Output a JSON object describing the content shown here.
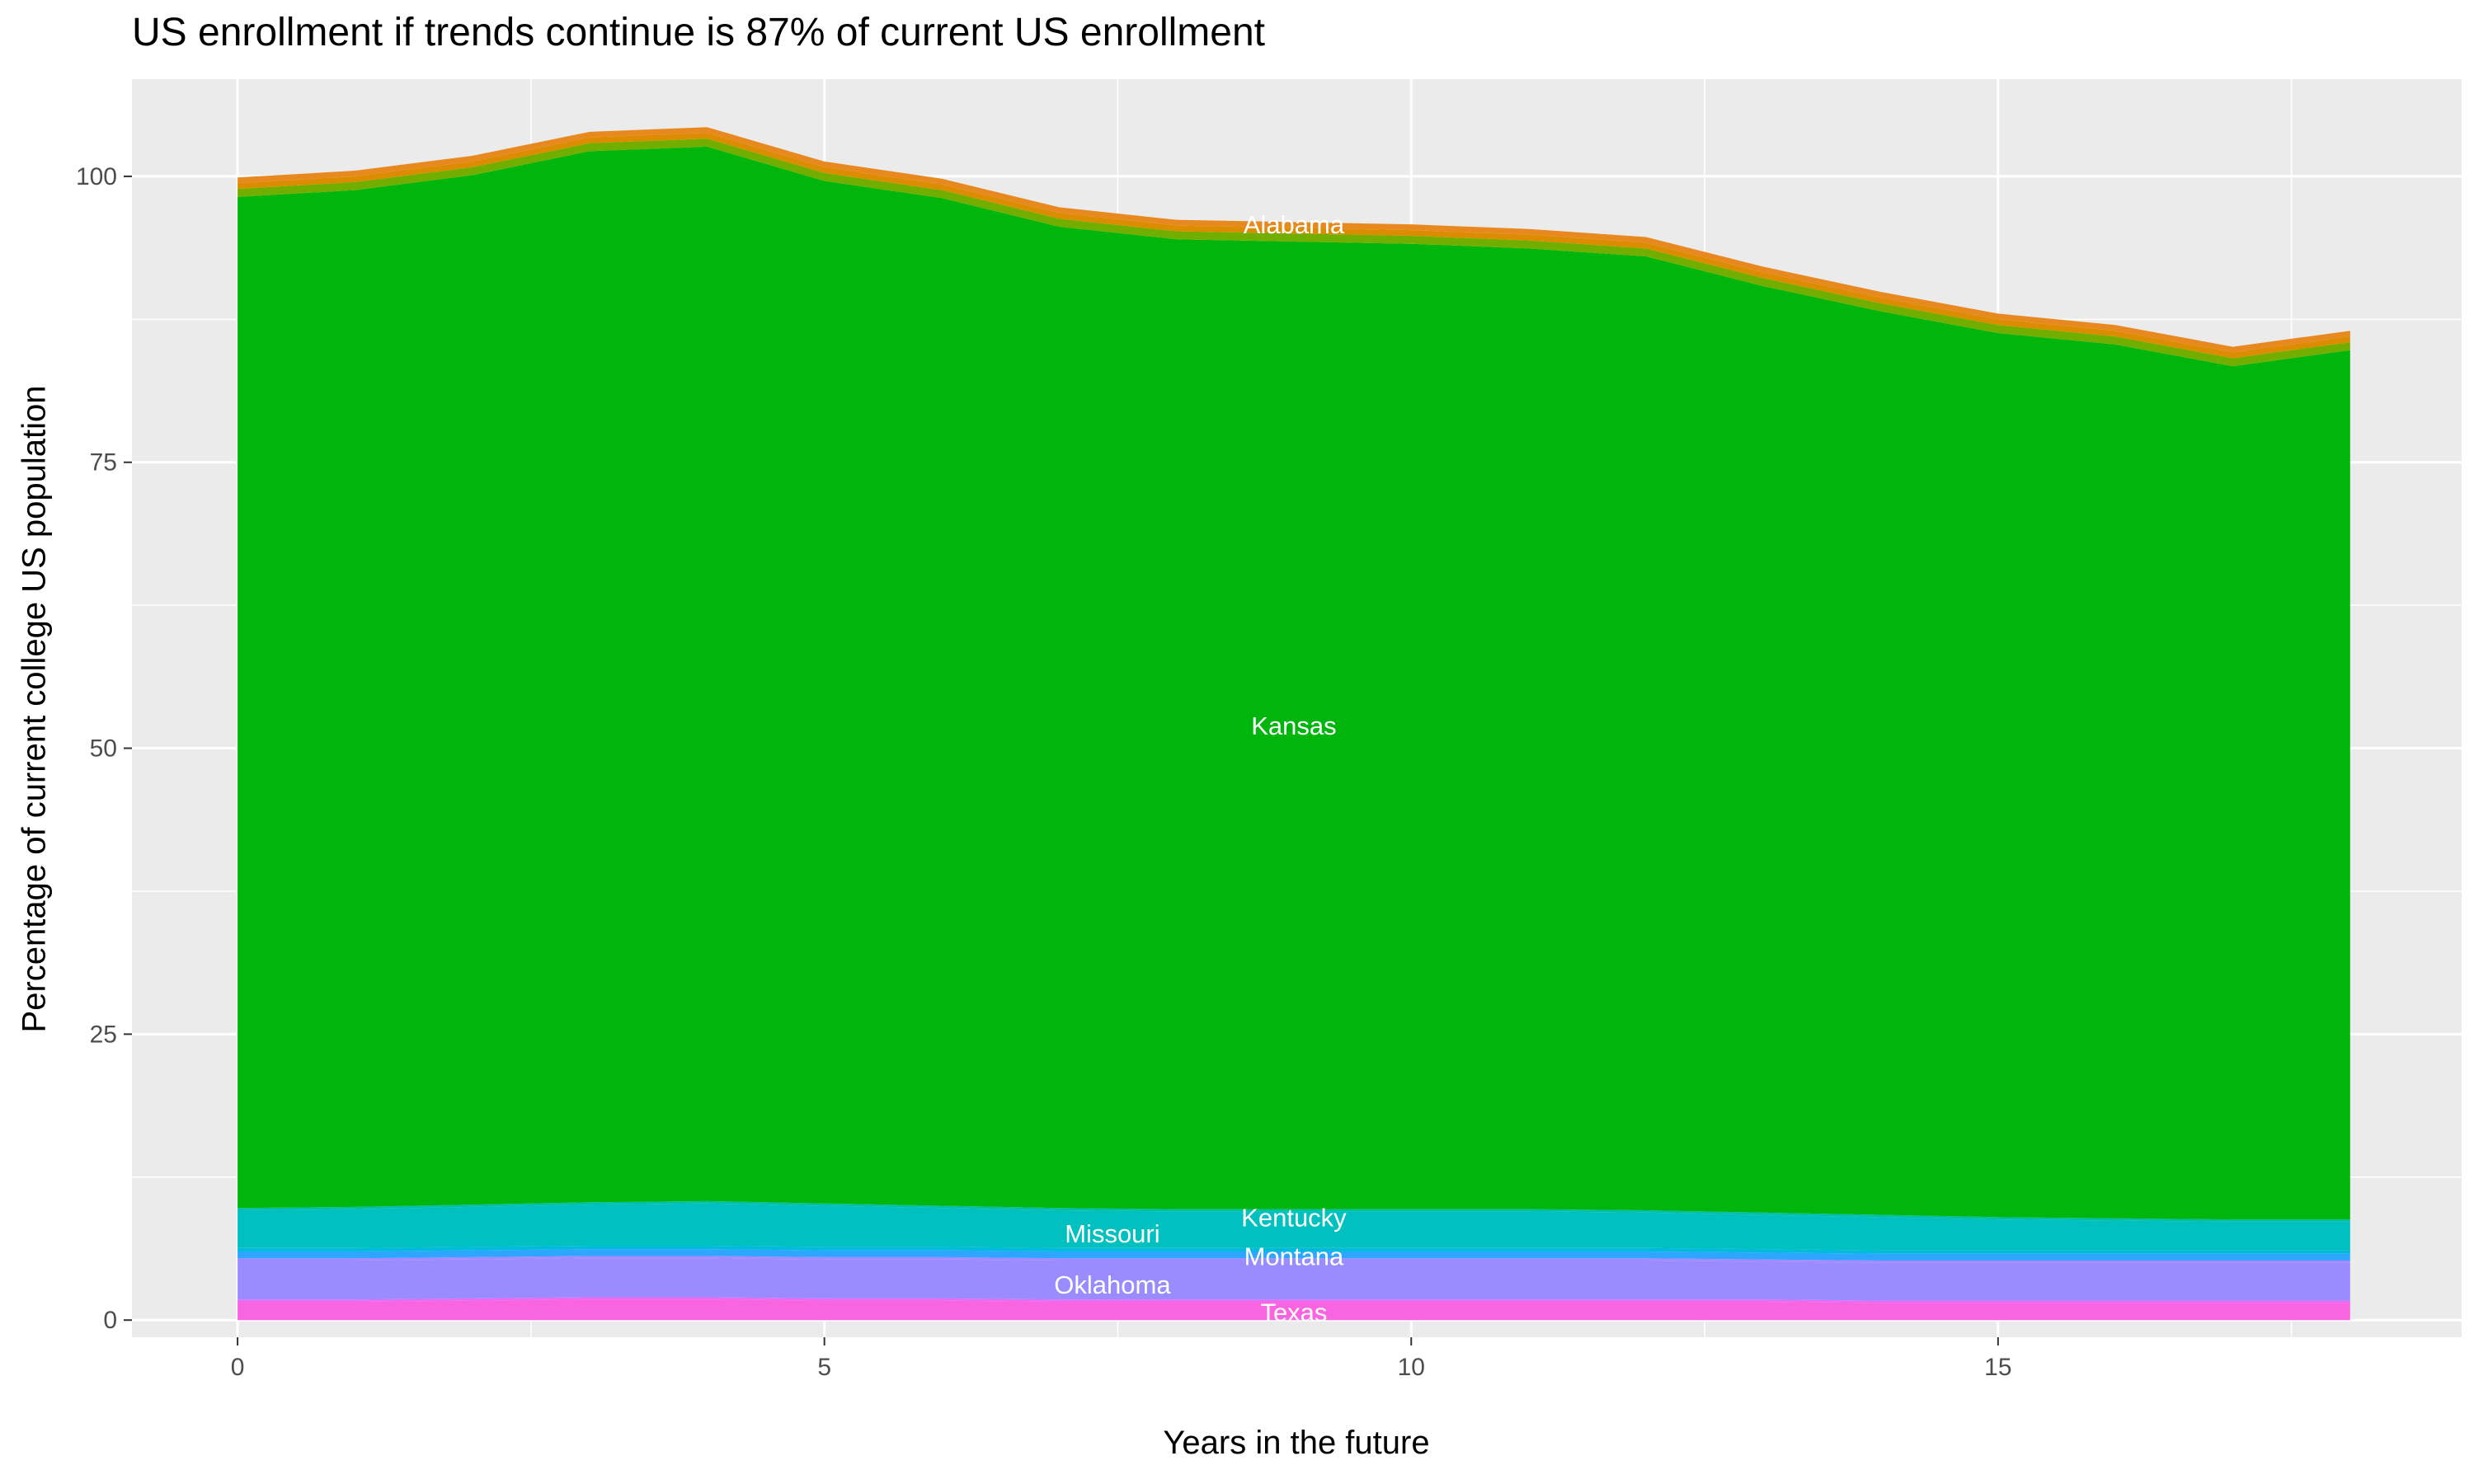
{
  "chart_data": {
    "type": "area",
    "stacked": true,
    "title": "US enrollment if trends continue is 87% of current US enrollment",
    "xlabel": "Years in the future",
    "ylabel": "Percentage of current college US population",
    "x": [
      0,
      1,
      2,
      3,
      4,
      5,
      6,
      7,
      8,
      9,
      10,
      11,
      12,
      13,
      14,
      15,
      16,
      17,
      18
    ],
    "xlim": [
      -0.9,
      18.95
    ],
    "ylim": [
      -1.5,
      108.5
    ],
    "xticks": [
      0,
      5,
      10,
      15
    ],
    "yticks": [
      0,
      25,
      50,
      75,
      100
    ],
    "grid": true,
    "background": "#EBEBEB",
    "label_x": 9,
    "series": [
      {
        "name": "Texas",
        "color": "#F964E0",
        "label_y": 0.7,
        "values": [
          1.6,
          1.6,
          1.7,
          1.8,
          1.8,
          1.7,
          1.7,
          1.6,
          1.6,
          1.6,
          1.6,
          1.6,
          1.6,
          1.6,
          1.5,
          1.5,
          1.5,
          1.5,
          1.5
        ]
      },
      {
        "color": "#E76BF3",
        "values": [
          0.2,
          0.2,
          0.2,
          0.2,
          0.2,
          0.2,
          0.2,
          0.2,
          0.2,
          0.2,
          0.2,
          0.2,
          0.2,
          0.2,
          0.2,
          0.2,
          0.2,
          0.2,
          0.2
        ]
      },
      {
        "name": "Oklahoma",
        "color": "#9A8CFF",
        "label_y": 3.1,
        "values": [
          3.4,
          3.4,
          3.4,
          3.4,
          3.4,
          3.4,
          3.4,
          3.4,
          3.4,
          3.4,
          3.4,
          3.4,
          3.4,
          3.3,
          3.3,
          3.3,
          3.3,
          3.3,
          3.3
        ]
      },
      {
        "color": "#A58AFF",
        "values": [
          0.2,
          0.2,
          0.2,
          0.2,
          0.2,
          0.2,
          0.2,
          0.2,
          0.2,
          0.2,
          0.2,
          0.2,
          0.2,
          0.2,
          0.2,
          0.2,
          0.2,
          0.2,
          0.2
        ]
      },
      {
        "name": "Montana",
        "color": "#2EA6FF",
        "label_y": 5.6,
        "values": [
          0.6,
          0.6,
          0.6,
          0.6,
          0.6,
          0.6,
          0.6,
          0.6,
          0.6,
          0.6,
          0.6,
          0.6,
          0.6,
          0.6,
          0.6,
          0.6,
          0.6,
          0.6,
          0.6
        ]
      },
      {
        "color": "#00BBDB",
        "values": [
          0.3,
          0.3,
          0.3,
          0.3,
          0.3,
          0.3,
          0.3,
          0.3,
          0.3,
          0.3,
          0.3,
          0.3,
          0.3,
          0.3,
          0.3,
          0.3,
          0.3,
          0.3,
          0.3
        ]
      },
      {
        "name": "Missouri",
        "color": "#00C0C0",
        "label_y": 7.6,
        "values": [
          3.3,
          3.4,
          3.5,
          3.6,
          3.7,
          3.6,
          3.4,
          3.3,
          3.2,
          3.2,
          3.2,
          3.2,
          3.1,
          3.0,
          2.9,
          2.7,
          2.6,
          2.5,
          2.5
        ]
      },
      {
        "name": "Kentucky",
        "color": "#00C1A8",
        "label_y": 9.0,
        "values": [
          0.2,
          0.2,
          0.2,
          0.2,
          0.2,
          0.2,
          0.2,
          0.2,
          0.2,
          0.2,
          0.2,
          0.2,
          0.2,
          0.2,
          0.2,
          0.2,
          0.2,
          0.2,
          0.2
        ]
      },
      {
        "name": "Kansas",
        "color": "#00B50B",
        "label_y": 52,
        "values": [
          88.4,
          88.9,
          90.0,
          91.9,
          92.2,
          89.4,
          88.1,
          85.8,
          84.8,
          84.6,
          84.4,
          84.0,
          83.4,
          81.0,
          79.0,
          77.3,
          76.4,
          74.6,
          76.0
        ]
      },
      {
        "color": "#72AE00",
        "values": [
          0.7,
          0.7,
          0.7,
          0.7,
          0.7,
          0.7,
          0.7,
          0.7,
          0.7,
          0.7,
          0.7,
          0.7,
          0.7,
          0.7,
          0.7,
          0.7,
          0.7,
          0.7,
          0.7
        ]
      },
      {
        "name": "Alabama",
        "color": "#DC8C00",
        "label_y": 95.8,
        "values": [
          0.5,
          0.5,
          0.5,
          0.5,
          0.5,
          0.5,
          0.5,
          0.5,
          0.5,
          0.5,
          0.5,
          0.5,
          0.5,
          0.5,
          0.5,
          0.5,
          0.5,
          0.5,
          0.5
        ]
      },
      {
        "color": "#E8891F",
        "values": [
          0.5,
          0.5,
          0.5,
          0.5,
          0.5,
          0.5,
          0.5,
          0.5,
          0.5,
          0.5,
          0.5,
          0.5,
          0.5,
          0.5,
          0.5,
          0.5,
          0.5,
          0.5,
          0.5
        ]
      }
    ]
  }
}
